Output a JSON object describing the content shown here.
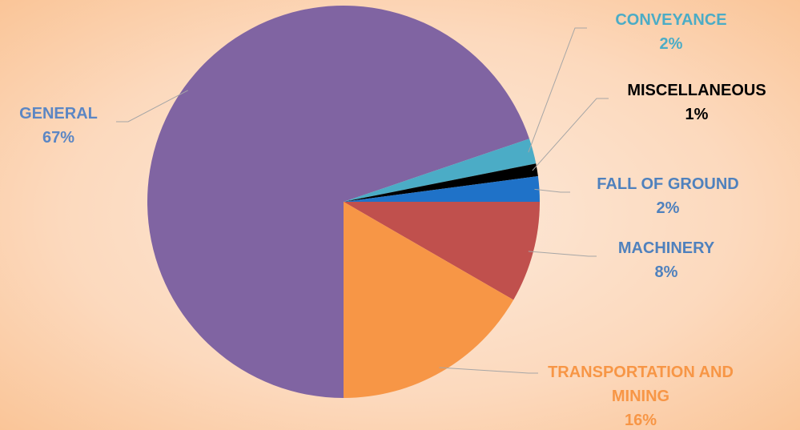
{
  "chart_data": {
    "type": "pie",
    "categories": [
      "GENERAL",
      "CONVEYANCE",
      "MISCELLANEOUS",
      "FALL OF GROUND",
      "MACHINERY",
      "TRANSPORTATION AND MINING"
    ],
    "values": [
      67,
      2,
      1,
      2,
      8,
      16
    ],
    "value_labels": [
      "67%",
      "2%",
      "1%",
      "2%",
      "8%",
      "16%"
    ],
    "colors": [
      "#8064a2",
      "#4bacc6",
      "#000000",
      "#1f72c8",
      "#c0504d",
      "#f79646"
    ],
    "label_colors": [
      "#5b86c4",
      "#4bacc6",
      "#000000",
      "#4f81bd",
      "#4f81bd",
      "#f79646"
    ]
  }
}
